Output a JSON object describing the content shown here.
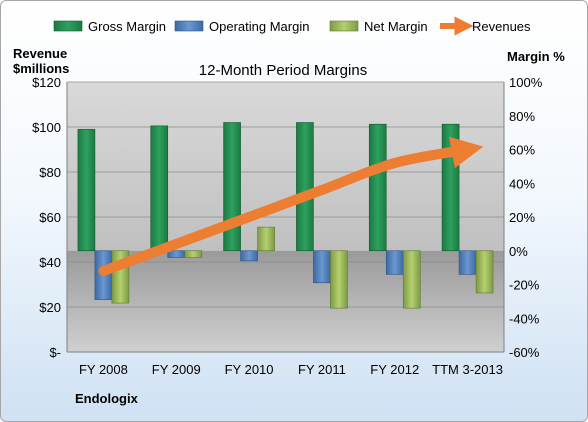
{
  "chart_data": {
    "type": "bar",
    "title": "12-Month Period Margins",
    "categories": [
      "FY 2008",
      "FY 2009",
      "FY 2010",
      "FY 2011",
      "FY 2012",
      "TTM 3-2013"
    ],
    "series": [
      {
        "name": "Gross Margin",
        "axis": "right",
        "values": [
          72,
          74,
          76,
          76,
          75,
          75
        ],
        "color": "#1f8a4c"
      },
      {
        "name": "Operating Margin",
        "axis": "right",
        "values": [
          -29,
          -4,
          -6,
          -19,
          -14,
          -14
        ],
        "color": "#4f81bd"
      },
      {
        "name": "Net Margin",
        "axis": "right",
        "values": [
          -31,
          -4,
          14,
          -34,
          -34,
          -25
        ],
        "color": "#9bbb59"
      },
      {
        "name": "Revenues",
        "axis": "left",
        "type": "line",
        "values": [
          36,
          48,
          60,
          72,
          84,
          90
        ],
        "color": "#ed7d31"
      }
    ],
    "y_left": {
      "label_line1": "Revenue",
      "label_line2": "$millions",
      "ylim": [
        0,
        120
      ],
      "ticks": [
        "$-",
        "$20",
        "$40",
        "$60",
        "$80",
        "$100",
        "$120"
      ]
    },
    "y_right": {
      "label": "Margin %",
      "ylim": [
        -60,
        100
      ],
      "ticks": [
        "-60%",
        "-40%",
        "-20%",
        "0%",
        "20%",
        "40%",
        "60%",
        "80%",
        "100%"
      ]
    },
    "legend_position": "top",
    "grid": true
  },
  "company": "Endologix"
}
